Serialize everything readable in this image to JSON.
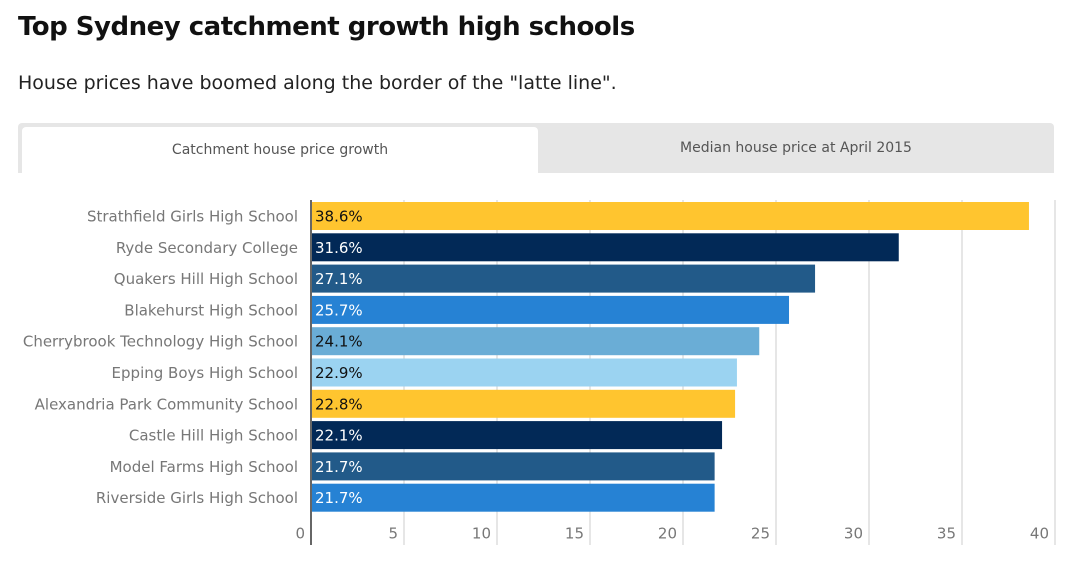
{
  "tabs": [
    "Catchment house price growth",
    "Median house price at April 2015"
  ],
  "chart_data": {
    "type": "barh",
    "title": "Top Sydney catchment growth high schools",
    "subtitle": "House prices have boomed along the border of the \"latte line\".",
    "categories": [
      "Strathfield Girls High School",
      "Ryde Secondary College",
      "Quakers Hill High School",
      "Blakehurst High School",
      "Cherrybrook Technology High School",
      "Epping Boys High School",
      "Alexandria Park Community School",
      "Castle Hill High School",
      "Model Farms High School",
      "Riverside Girls High School"
    ],
    "values": [
      38.6,
      31.6,
      27.1,
      25.7,
      24.1,
      22.9,
      22.8,
      22.1,
      21.7,
      21.7
    ],
    "value_labels": [
      "38.6%",
      "31.6%",
      "27.1%",
      "25.7%",
      "24.1%",
      "22.9%",
      "22.8%",
      "22.1%",
      "21.7%",
      "21.7%"
    ],
    "colors": [
      "#ffc52f",
      "#022957",
      "#225a89",
      "#2682d4",
      "#6aadd6",
      "#9bd3f1",
      "#ffc52f",
      "#022957",
      "#225a89",
      "#2682d4"
    ],
    "xlim": [
      0,
      40
    ],
    "xticks": [
      0,
      5,
      10,
      15,
      20,
      25,
      30,
      35,
      40
    ],
    "grid": true
  }
}
